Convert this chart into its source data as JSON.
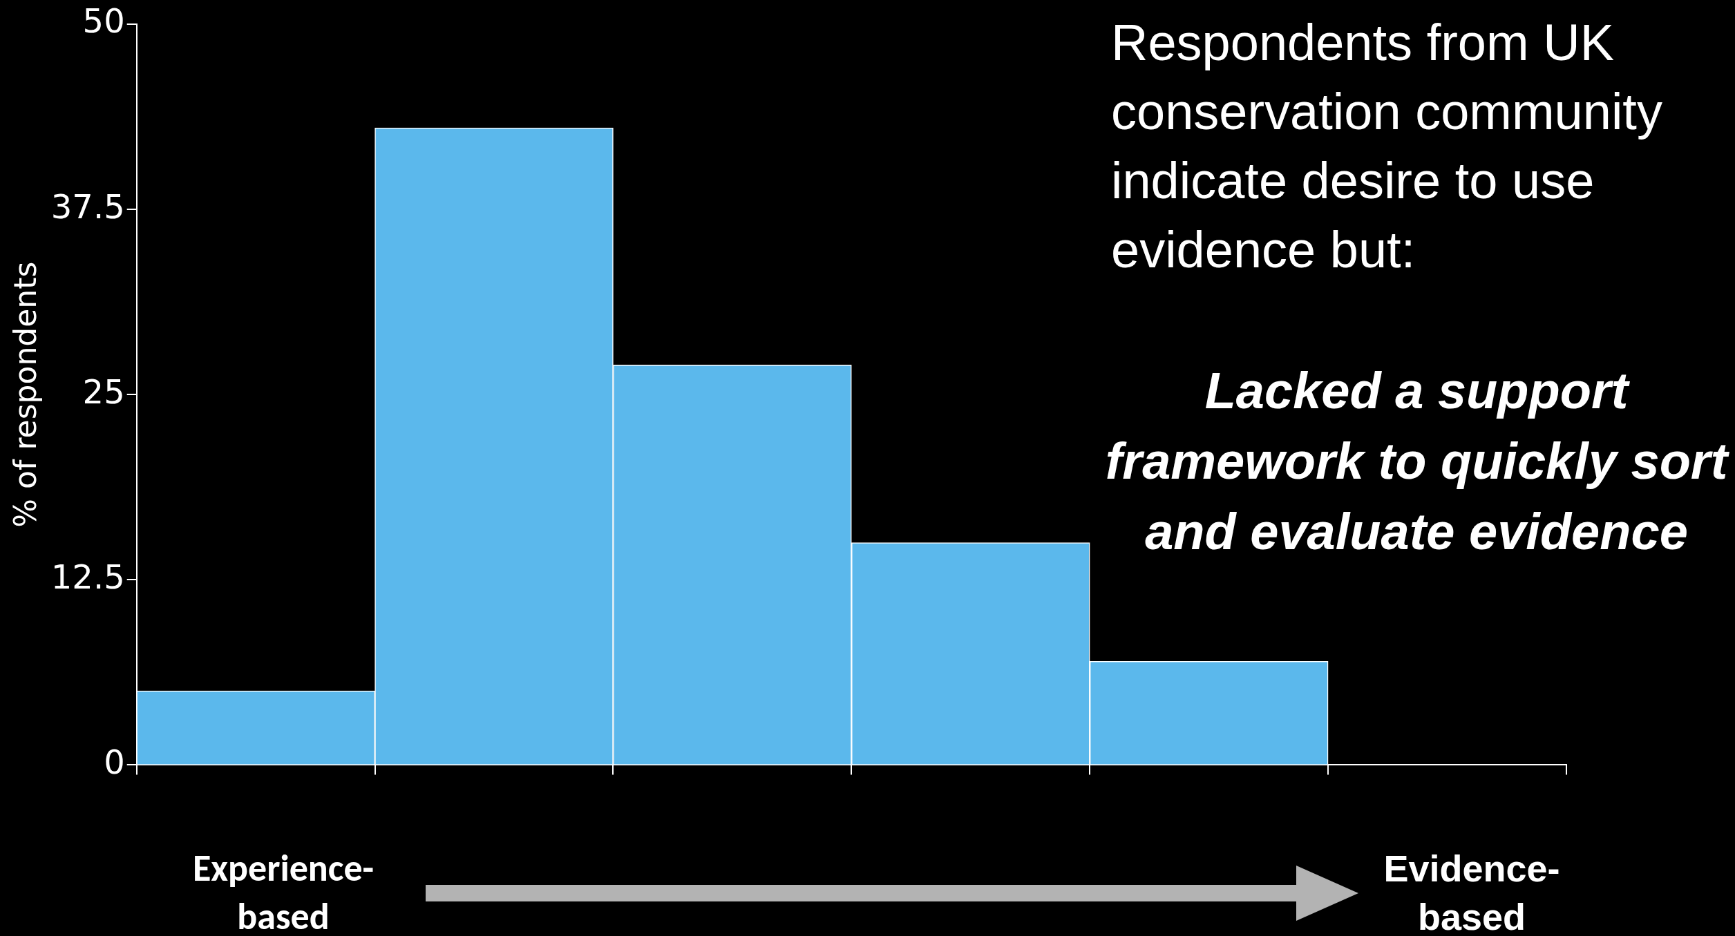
{
  "chart_data": {
    "type": "bar",
    "categories": [
      null,
      null,
      null,
      null,
      null,
      null
    ],
    "values": [
      5,
      43,
      27,
      15,
      7,
      0
    ],
    "color": "#5bb8ec",
    "ylim": [
      0,
      50
    ],
    "yticks": [
      0,
      12.5,
      25,
      37.5,
      50
    ],
    "ylabel": "% of respondents",
    "grid": false,
    "legend": false,
    "annotations": [
      "Respondents from UK conservation community indicate desire to use evidence but:",
      "Lacked a support framework to quickly sort and evaluate evidence",
      "Experience-based",
      "Evidence-based"
    ]
  }
}
